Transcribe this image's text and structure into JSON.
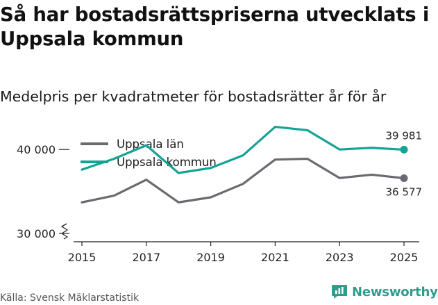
{
  "title": "Så har bostadsrättspriserna utvecklats i Uppsala kommun",
  "subtitle": "Medelpris per kvadratmeter för bostadsrätter år för år",
  "source": "Källa: Svensk Mäklarstatistik",
  "brand": {
    "name": "Newsworthy",
    "color": "#2f9c8c"
  },
  "chart_data": {
    "type": "line",
    "title": "Så har bostadsrättspriserna utvecklats i Uppsala kommun",
    "subtitle": "Medelpris per kvadratmeter för bostadsrätter år för år",
    "xlabel": "",
    "ylabel": "",
    "x": [
      2015,
      2016,
      2017,
      2018,
      2019,
      2020,
      2021,
      2022,
      2023,
      2024,
      2025
    ],
    "xticks": [
      "2015",
      "2017",
      "2019",
      "2021",
      "2023",
      "2025"
    ],
    "yticks": [
      {
        "value": 30000,
        "label": "30 000"
      },
      {
        "value": 40000,
        "label": "40 000"
      }
    ],
    "ylim": [
      29000,
      42500
    ],
    "axis_break": true,
    "grid": false,
    "legend_position": "top-left",
    "series": [
      {
        "name": "Uppsala län",
        "color": "#6b6a70",
        "values": [
          33700,
          34500,
          36400,
          33700,
          34300,
          35900,
          38800,
          38900,
          36600,
          37000,
          36577
        ],
        "end_label": "36 577"
      },
      {
        "name": "Uppsala kommun",
        "color": "#14a394",
        "values": [
          37600,
          38900,
          40500,
          37200,
          37800,
          39300,
          42700,
          42300,
          40000,
          40200,
          39981
        ],
        "end_label": "39 981"
      }
    ]
  }
}
